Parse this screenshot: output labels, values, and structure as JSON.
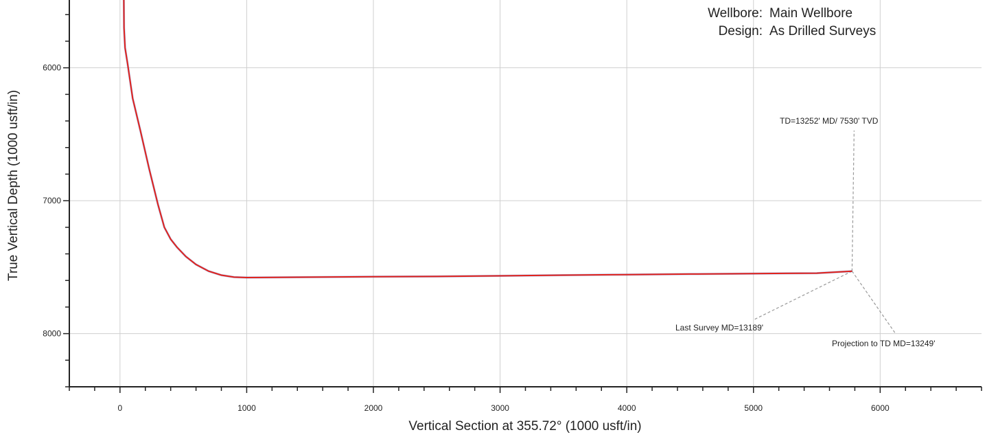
{
  "info": [
    {
      "label": "Wellbore:",
      "value": "Main Wellbore"
    },
    {
      "label": "Design:",
      "value": "As Drilled Surveys"
    }
  ],
  "chart_data": {
    "type": "line",
    "xlabel": "Vertical Section at 355.72° (1000 usft/in)",
    "ylabel": "True Vertical Depth (1000 usft/in)",
    "xlim": [
      -400,
      6800
    ],
    "ylim": [
      8400,
      5490
    ],
    "y_inverted": true,
    "grid": true,
    "x_ticks": [
      0,
      1000,
      2000,
      3000,
      4000,
      5000,
      6000
    ],
    "y_ticks": [
      6000,
      7000,
      8000
    ],
    "series": [
      {
        "color": "#e2231a",
        "x": [
          30,
          32,
          40,
          60,
          100,
          160,
          230,
          300,
          350,
          400,
          450,
          520,
          600,
          700,
          800,
          900,
          1000,
          1500,
          2000,
          2500,
          3000,
          3500,
          4000,
          4500,
          5000,
          5500,
          5778
        ],
        "y": [
          5490,
          5700,
          5850,
          5970,
          6230,
          6470,
          6760,
          7030,
          7200,
          7290,
          7350,
          7420,
          7480,
          7530,
          7560,
          7575,
          7578,
          7575,
          7572,
          7570,
          7565,
          7560,
          7556,
          7552,
          7548,
          7545,
          7530
        ]
      }
    ],
    "annotations": [
      {
        "text": "TD=13252' MD/ 7530' TVD"
      },
      {
        "text": "Last Survey MD=13189'"
      },
      {
        "text": "Projection to TD MD=13249'"
      }
    ]
  }
}
